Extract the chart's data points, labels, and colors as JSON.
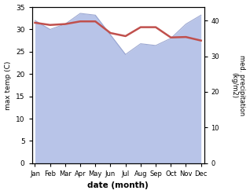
{
  "months": [
    "Jan",
    "Feb",
    "Mar",
    "Apr",
    "May",
    "Jun",
    "Jul",
    "Aug",
    "Sep",
    "Oct",
    "Nov",
    "Dec"
  ],
  "max_temp": [
    31.5,
    31.0,
    31.2,
    31.8,
    31.8,
    29.2,
    28.5,
    30.5,
    30.5,
    28.2,
    28.3,
    27.5
  ],
  "precipitation": [
    40.0,
    37.5,
    39.0,
    42.0,
    41.5,
    36.0,
    30.5,
    33.5,
    33.0,
    35.0,
    39.0,
    41.5
  ],
  "temp_color": "#c0504d",
  "precip_fill_color": "#b8c4e8",
  "precip_line_color": "#8896c8",
  "ylabel_left": "max temp (C)",
  "ylabel_right": "med. precipitation\n(kg/m2)",
  "xlabel": "date (month)",
  "ylim_left": [
    0,
    35
  ],
  "ylim_right": [
    0,
    43.75
  ],
  "yticks_left": [
    0,
    5,
    10,
    15,
    20,
    25,
    30,
    35
  ],
  "yticks_right": [
    0,
    10,
    20,
    30,
    40
  ],
  "background_color": "#ffffff",
  "fig_width": 3.18,
  "fig_height": 2.47,
  "dpi": 100
}
